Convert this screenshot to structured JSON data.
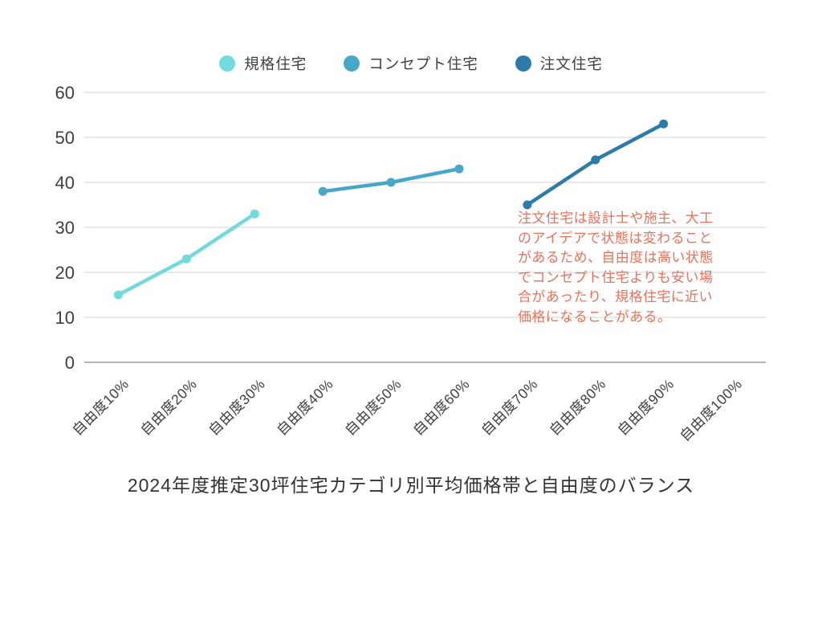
{
  "title": "2024年度推定30坪住宅カテゴリ別平均価格帯と自由度のバランス",
  "annotation": {
    "text": "注文住宅は設計士や施主、大工\nのアイデアで状態は変わること\nがあるため、自由度は高い状態\nでコンセプト住宅よりも安い場\n合があったり、規格住宅に近い\n価格になることがある。",
    "color": "#E0745C"
  },
  "colors": {
    "grid_line": "#E2E2E2",
    "axis_line": "#9C9C9C",
    "axis_text": "#3F3F3F",
    "background": "#FFFFFF"
  },
  "chart_data": {
    "type": "line",
    "title": "2024年度推定30坪住宅カテゴリ別平均価格帯と自由度のバランス",
    "categories": [
      "自由度10%",
      "自由度20%",
      "自由度30%",
      "自由度40%",
      "自由度50%",
      "自由度60%",
      "自由度70%",
      "自由度80%",
      "自由度90%",
      "自由度100%"
    ],
    "series": [
      {
        "name": "規格住宅",
        "color": "#72D9DC",
        "points": [
          {
            "category_index": 0,
            "category": "自由度10%",
            "value": 15
          },
          {
            "category_index": 1,
            "category": "自由度20%",
            "value": 23
          },
          {
            "category_index": 2,
            "category": "自由度30%",
            "value": 33
          }
        ]
      },
      {
        "name": "コンセプト住宅",
        "color": "#47A7C7",
        "points": [
          {
            "category_index": 3,
            "category": "自由度40%",
            "value": 38
          },
          {
            "category_index": 4,
            "category": "自由度50%",
            "value": 40
          },
          {
            "category_index": 5,
            "category": "自由度60%",
            "value": 43
          }
        ]
      },
      {
        "name": "注文住宅",
        "color": "#2E7BAA",
        "points": [
          {
            "category_index": 6,
            "category": "自由度70%",
            "value": 35
          },
          {
            "category_index": 7,
            "category": "自由度80%",
            "value": 45
          },
          {
            "category_index": 8,
            "category": "自由度90%",
            "value": 53
          }
        ]
      }
    ],
    "y_ticks": [
      0,
      10,
      20,
      30,
      40,
      50,
      60
    ],
    "ylim": [
      0,
      60
    ],
    "grid": true,
    "legend_position": "top",
    "x_tick_rotation": -45
  }
}
